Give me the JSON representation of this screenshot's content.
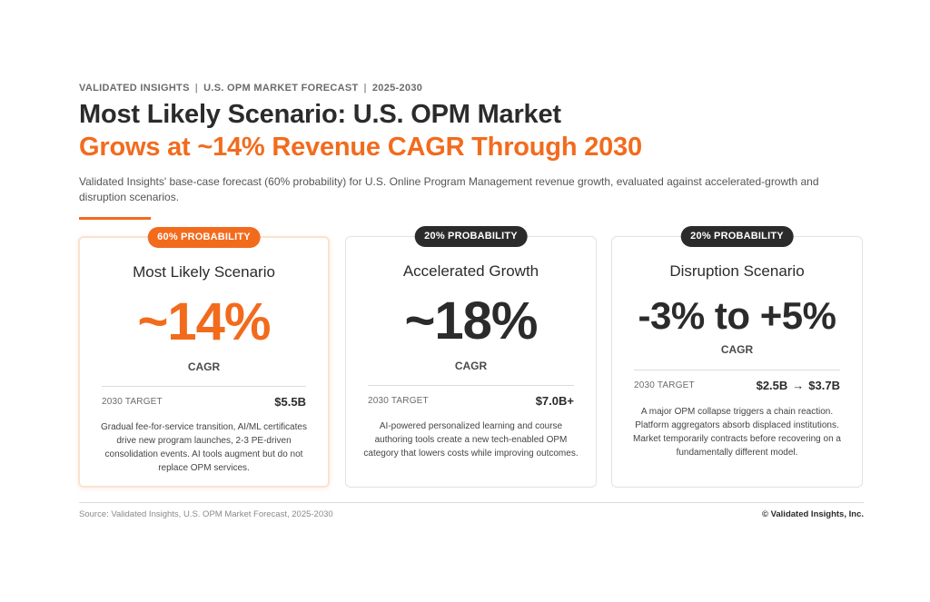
{
  "header": {
    "eyebrow": [
      "VALIDATED INSIGHTS",
      "U.S. OPM MARKET FORECAST",
      "2025-2030"
    ],
    "eyebrow_separator": "|",
    "title_line1": "Most Likely Scenario: U.S. OPM Market",
    "title_line2": "Grows at ~14% Revenue CAGR Through 2030",
    "subtitle": "Validated Insights' base-case forecast (60% probability) for U.S. Online Program Management revenue growth, evaluated against accelerated-growth and disruption scenarios."
  },
  "colors": {
    "accent": "#f26b1d",
    "dark": "#2b2b2b"
  },
  "cards": [
    {
      "badge": "60% PROBABILITY",
      "title": "Most Likely Scenario",
      "value": "~14%",
      "metric": "CAGR",
      "target_label": "2030 TARGET",
      "target_value": "$5.5B",
      "description": "Gradual fee-for-service transition, AI/ML certificates drive new program launches, 2-3 PE-driven consolidation events. AI tools augment but do not replace OPM services."
    },
    {
      "badge": "20% PROBABILITY",
      "title": "Accelerated Growth",
      "value": "~18%",
      "metric": "CAGR",
      "target_label": "2030 TARGET",
      "target_value": "$7.0B+",
      "description": "AI-powered personalized learning and course authoring tools create a new tech-enabled OPM category that lowers costs while improving outcomes."
    },
    {
      "badge": "20% PROBABILITY",
      "title": "Disruption Scenario",
      "value": "-3% to +5%",
      "metric": "CAGR",
      "target_label": "2030 TARGET",
      "target_from": "$2.5B",
      "target_arrow": "→",
      "target_to": "$3.7B",
      "description": "A major OPM collapse triggers a chain reaction. Platform aggregators absorb displaced institutions. Market temporarily contracts before recovering on a fundamentally different model."
    }
  ],
  "footer": {
    "source": "Source: Validated Insights, U.S. OPM Market Forecast, 2025-2030",
    "copyright": "© Validated Insights, Inc."
  }
}
